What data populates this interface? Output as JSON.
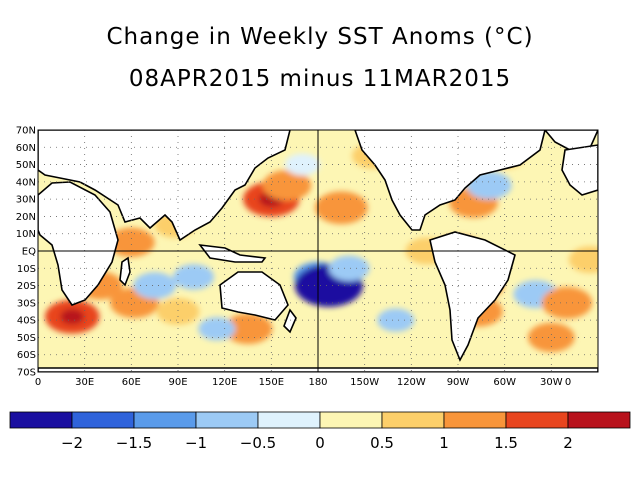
{
  "title": "Change in Weekly SST Anoms (°C)",
  "subtitle": "08APR2015 minus 11MAR2015",
  "map": {
    "lat_labels": [
      "70N",
      "60N",
      "50N",
      "40N",
      "30N",
      "20N",
      "10N",
      "EQ",
      "10S",
      "20S",
      "30S",
      "40S",
      "50S",
      "60S",
      "70S"
    ],
    "lon_labels": [
      "0",
      "30E",
      "60E",
      "90E",
      "120E",
      "150E",
      "180",
      "150W",
      "120W",
      "90W",
      "60W",
      "30W",
      "0"
    ],
    "lat_range": [
      -70,
      70
    ],
    "lon_range": [
      0,
      360
    ],
    "grid": "dotted"
  },
  "colorbar": {
    "colors": [
      "#1a0fa0",
      "#2f63db",
      "#5a9bea",
      "#9ccaf5",
      "#dff2fd",
      "#fdf6b4",
      "#fccf6a",
      "#f8953a",
      "#e8451e",
      "#b8121c",
      "#8a0d12"
    ],
    "tick_labels": [
      "−2",
      "−1.5",
      "−1",
      "−0.5",
      "0",
      "0.5",
      "1",
      "1.5",
      "2"
    ]
  },
  "anomalies": [
    {
      "lon": 62,
      "lat": -30,
      "value": 1.2
    },
    {
      "lon": 22,
      "lat": -38,
      "value": 1.5
    },
    {
      "lon": 40,
      "lat": -20,
      "value": 1.0
    },
    {
      "lon": 75,
      "lat": -20,
      "value": -0.9
    },
    {
      "lon": 100,
      "lat": -15,
      "value": -0.8
    },
    {
      "lon": 90,
      "lat": -35,
      "value": 0.9
    },
    {
      "lon": 150,
      "lat": 30,
      "value": 1.6
    },
    {
      "lon": 160,
      "lat": 38,
      "value": 1.2
    },
    {
      "lon": 195,
      "lat": 25,
      "value": 1.4
    },
    {
      "lon": 180,
      "lat": -15,
      "value": -1.2
    },
    {
      "lon": 187,
      "lat": -20,
      "value": -2.2
    },
    {
      "lon": 200,
      "lat": -10,
      "value": -0.8
    },
    {
      "lon": 270,
      "lat": 0,
      "value": 1.3
    },
    {
      "lon": 250,
      "lat": 0,
      "value": 0.9
    },
    {
      "lon": 285,
      "lat": -20,
      "value": 1.0
    },
    {
      "lon": 283,
      "lat": -35,
      "value": 1.2
    },
    {
      "lon": 280,
      "lat": 28,
      "value": 1.2
    },
    {
      "lon": 290,
      "lat": 38,
      "value": -1.0
    },
    {
      "lon": 320,
      "lat": -25,
      "value": -1.0
    },
    {
      "lon": 340,
      "lat": -30,
      "value": 1.3
    },
    {
      "lon": 330,
      "lat": -50,
      "value": 1.1
    },
    {
      "lon": 135,
      "lat": -45,
      "value": 1.2
    },
    {
      "lon": 115,
      "lat": -45,
      "value": -0.6
    },
    {
      "lon": 60,
      "lat": 5,
      "value": 1.1
    },
    {
      "lon": 88,
      "lat": 15,
      "value": 0.8
    },
    {
      "lon": 230,
      "lat": -40,
      "value": -0.6
    },
    {
      "lon": 215,
      "lat": 55,
      "value": 0.8
    },
    {
      "lon": 355,
      "lat": -5,
      "value": 0.9
    },
    {
      "lon": 300,
      "lat": 55,
      "value": 0.8
    },
    {
      "lon": 30,
      "lat": 50,
      "value": 0.6
    },
    {
      "lon": 170,
      "lat": 50,
      "value": -0.5
    }
  ]
}
